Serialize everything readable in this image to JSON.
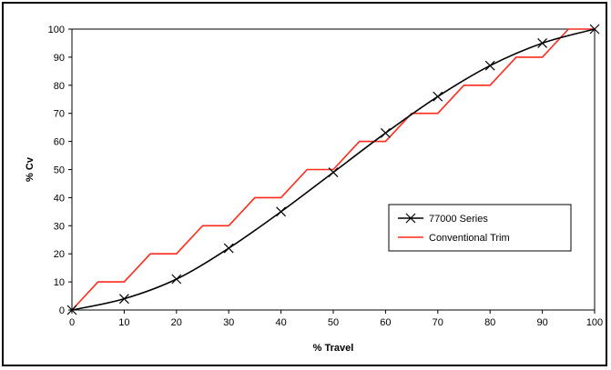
{
  "chart_data": {
    "type": "line",
    "xlabel": "% Travel",
    "ylabel": "% Cv",
    "xlim": [
      0,
      100
    ],
    "ylim": [
      0,
      100
    ],
    "xticks": [
      "0",
      "10",
      "20",
      "30",
      "40",
      "50",
      "60",
      "70",
      "80",
      "90",
      "100"
    ],
    "yticks": [
      "0",
      "10",
      "20",
      "30",
      "40",
      "50",
      "60",
      "70",
      "80",
      "90",
      "100"
    ],
    "grid": false,
    "legend_position": "center-right",
    "series": [
      {
        "name": "77000 Series",
        "color": "#000000",
        "marker": "x",
        "x": [
          0,
          10,
          20,
          30,
          40,
          50,
          60,
          70,
          80,
          90,
          100
        ],
        "y": [
          0,
          4,
          11,
          22,
          35,
          49,
          63,
          76,
          87,
          95,
          100
        ]
      },
      {
        "name": "Conventional Trim",
        "color": "#ff2a1a",
        "marker": "none",
        "style": "step",
        "x": [
          0,
          5,
          10,
          15,
          20,
          25,
          30,
          35,
          40,
          45,
          50,
          55,
          60,
          65,
          70,
          75,
          80,
          85,
          90,
          95,
          100
        ],
        "y": [
          0,
          10,
          10,
          20,
          20,
          30,
          30,
          40,
          40,
          50,
          50,
          60,
          60,
          70,
          70,
          80,
          80,
          90,
          90,
          100,
          100
        ]
      }
    ]
  }
}
